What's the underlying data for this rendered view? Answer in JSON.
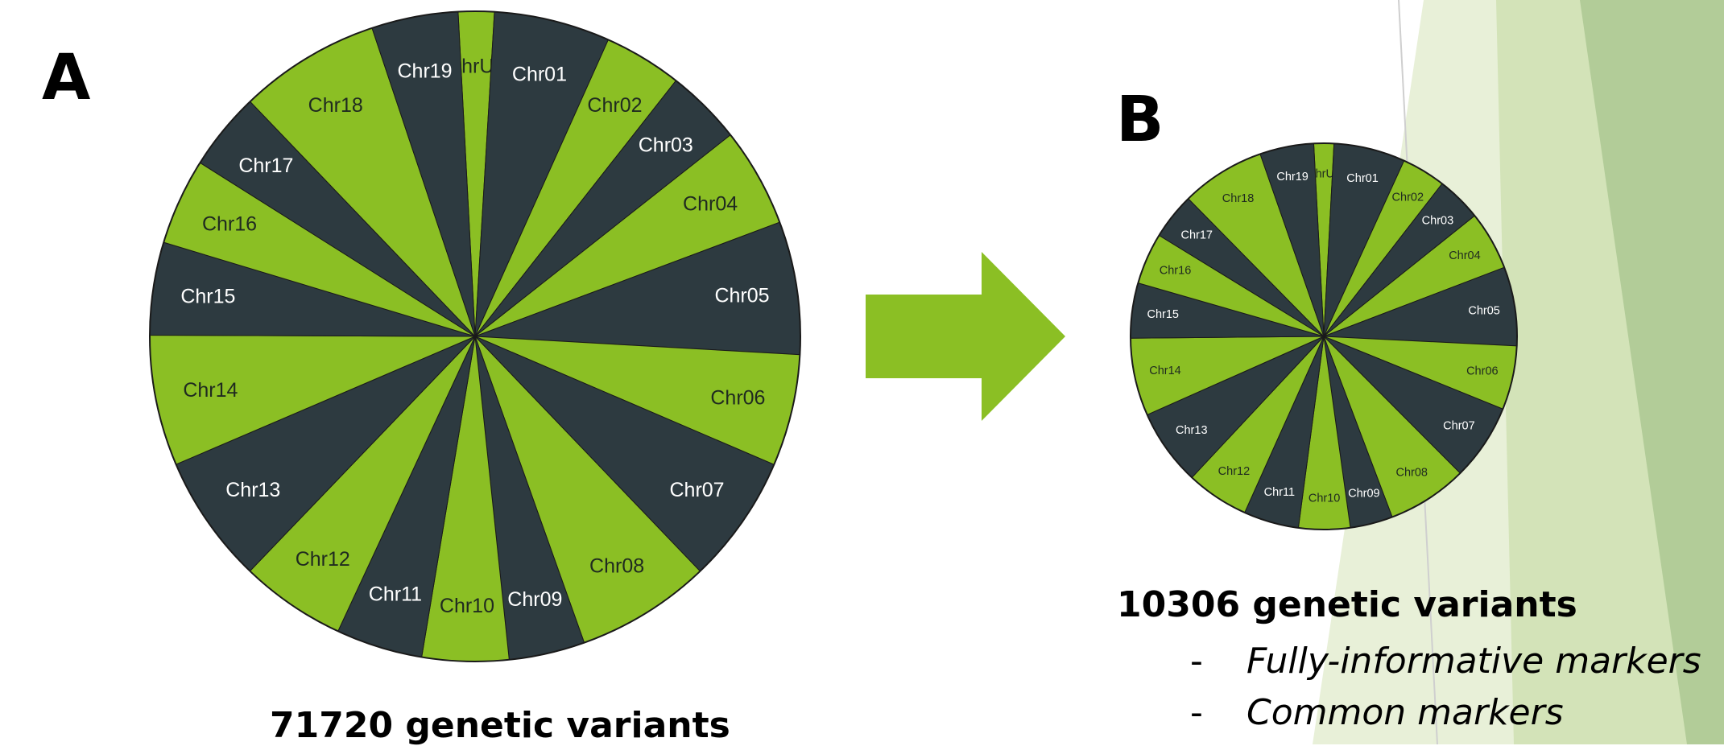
{
  "colors": {
    "green": "#8bbf24",
    "dark": "#2d3a40",
    "label_on_dark": "#ffffff",
    "label_on_green": "#1f2a20",
    "bg_light": "#e8f0d8",
    "bg_mid": "#d3e3b8",
    "bg_dark": "#b2cc98",
    "arrow": "#8bbf24"
  },
  "panel_a": {
    "letter": "A",
    "caption": "71720 genetic variants"
  },
  "panel_b": {
    "letter": "B",
    "caption": "10306 genetic variants",
    "bullets": [
      "Fully-informative markers",
      "Common markers"
    ],
    "bullet_marker": "-"
  },
  "arrow": {
    "icon": "right-arrow-icon"
  },
  "chart_data": [
    {
      "type": "pie",
      "title": "",
      "categories": [
        "ChrUn",
        "Chr01",
        "Chr02",
        "Chr03",
        "Chr04",
        "Chr05",
        "Chr06",
        "Chr07",
        "Chr08",
        "Chr09",
        "Chr10",
        "Chr11",
        "Chr12",
        "Chr13",
        "Chr14",
        "Chr15",
        "Chr16",
        "Chr17",
        "Chr18",
        "Chr19"
      ],
      "values": [
        1.7,
        5.5,
        3.7,
        3.6,
        4.7,
        6.3,
        5.3,
        6.1,
        6.4,
        3.6,
        4.1,
        4.1,
        5.0,
        6.1,
        6.2,
        4.4,
        4.1,
        3.7,
        6.7,
        4.1
      ],
      "slice_colors": [
        "green",
        "dark",
        "green",
        "dark",
        "green",
        "dark",
        "green",
        "dark",
        "green",
        "dark",
        "green",
        "dark",
        "green",
        "dark",
        "green",
        "dark",
        "green",
        "dark",
        "green",
        "dark"
      ],
      "start_angle_deg": -3,
      "direction": "clockwise"
    },
    {
      "type": "pie",
      "title": "",
      "categories": [
        "ChrUn",
        "Chr01",
        "Chr02",
        "Chr03",
        "Chr04",
        "Chr05",
        "Chr06",
        "Chr07",
        "Chr08",
        "Chr09",
        "Chr10",
        "Chr11",
        "Chr12",
        "Chr13",
        "Chr14",
        "Chr15",
        "Chr16",
        "Chr17",
        "Chr18",
        "Chr19"
      ],
      "values": [
        1.6,
        5.7,
        3.5,
        3.6,
        4.7,
        6.3,
        5.1,
        6.1,
        6.4,
        3.4,
        4.1,
        4.4,
        5.0,
        6.1,
        6.2,
        4.4,
        4.1,
        3.7,
        6.7,
        4.3
      ],
      "slice_colors": [
        "green",
        "dark",
        "green",
        "dark",
        "green",
        "dark",
        "green",
        "dark",
        "green",
        "dark",
        "green",
        "dark",
        "green",
        "dark",
        "green",
        "dark",
        "green",
        "dark",
        "green",
        "dark"
      ],
      "start_angle_deg": -3,
      "direction": "clockwise"
    }
  ]
}
